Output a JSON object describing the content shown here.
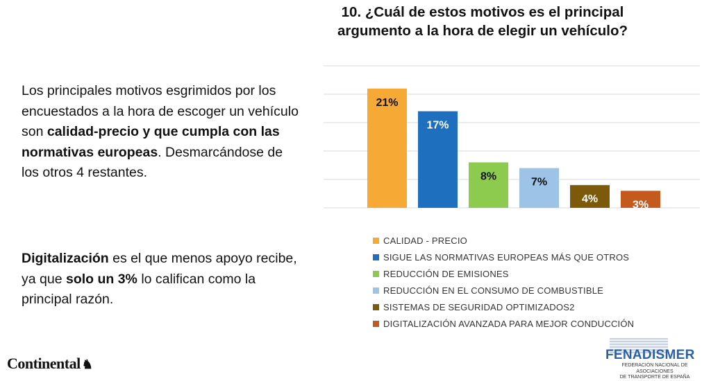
{
  "title_line1": "10. ¿Cuál de estos motivos es el principal",
  "title_line2": "argumento a la hora de elegir un vehículo?",
  "paragraph1": [
    {
      "text": "Los principales motivos esgrimidos por los encuestados a la hora de escoger un vehículo son ",
      "bold": false
    },
    {
      "text": "calidad-precio y que cumpla con las normativas europeas",
      "bold": true
    },
    {
      "text": ". Desmarcándose de los otros 4 restantes.",
      "bold": false
    }
  ],
  "paragraph2": [
    {
      "text": "Digitalización",
      "bold": true
    },
    {
      "text": " es el que menos apoyo recibe, ya que ",
      "bold": false
    },
    {
      "text": "solo un 3%",
      "bold": true
    },
    {
      "text": " lo califican como la principal razón.",
      "bold": false
    }
  ],
  "logo_left": {
    "text": "Continental",
    "symbol": "♞"
  },
  "logo_right": {
    "name": "FENADISMER",
    "sub1": "FEDERACIÓN NACIONAL DE ASOCIACIONES",
    "sub2": "DE TRANSPORTE DE ESPAÑA"
  },
  "chart_data": {
    "type": "bar",
    "categories": [
      "CALIDAD - PRECIO",
      "SIGUE LAS NORMATIVAS EUROPEAS MÁS QUE OTROS",
      "REDUCCIÓN DE EMISIONES",
      "REDUCCIÓN EN EL CONSUMO DE COMBUSTIBLE",
      "SISTEMAS DE SEGURIDAD OPTIMIZADOS2",
      "DIGITALIZACIÓN AVANZADA PARA MEJOR CONDUCCIÓN"
    ],
    "values": [
      21,
      17,
      8,
      7,
      4,
      3
    ],
    "labels": [
      "21%",
      "17%",
      "8%",
      "7%",
      "4%",
      "3%"
    ],
    "colors": [
      "#F6A935",
      "#1F6FBF",
      "#8CCB4E",
      "#9DC3E6",
      "#7D5A0A",
      "#C55A1F"
    ],
    "label_colors": [
      "#111111",
      "#ffffff",
      "#111111",
      "#111111",
      "#ffffff",
      "#ffffff"
    ],
    "ylim": [
      0,
      25
    ],
    "grid": true,
    "legend": "bottom",
    "unit": "%"
  }
}
